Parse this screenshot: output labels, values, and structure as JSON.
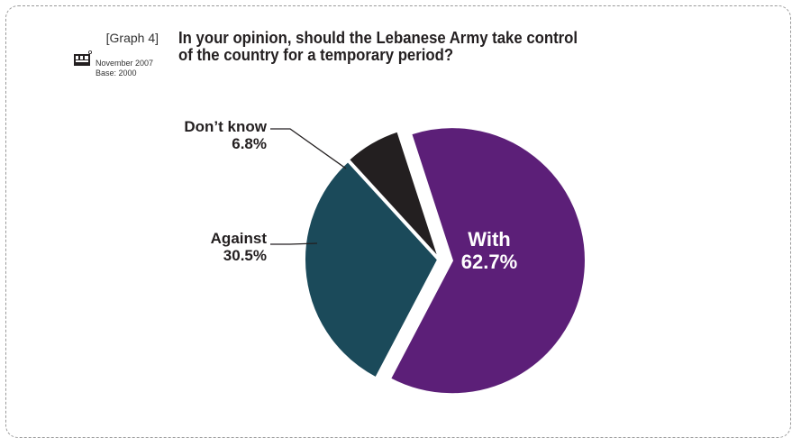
{
  "header": {
    "graph_number": "[Graph 4]",
    "survey_date": "November 2007",
    "survey_base": "Base: 2000",
    "title_line1": "In your opinion, should the Lebanese Army take control",
    "title_line2": "of the country for a temporary period?"
  },
  "colors": {
    "with": "#5c1f78",
    "against": "#1b4a5a",
    "dont_know": "#231f20"
  },
  "chart_data": {
    "type": "pie",
    "title": "In your opinion, should the Lebanese Army take control of the country for a temporary period?",
    "slices": [
      {
        "key": "with",
        "label": "With",
        "value": 62.7,
        "value_text": "62.7%",
        "exploded": true
      },
      {
        "key": "against",
        "label": "Against",
        "value": 30.5,
        "value_text": "30.5%",
        "exploded": false
      },
      {
        "key": "dont_know",
        "label": "Don’t know",
        "value": 6.8,
        "value_text": "6.8%",
        "exploded": false
      }
    ],
    "legend": "none"
  }
}
